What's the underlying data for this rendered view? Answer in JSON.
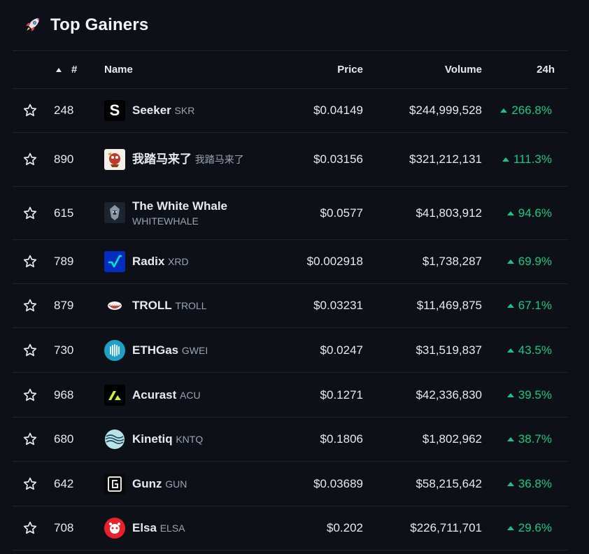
{
  "header": {
    "title": "Top Gainers",
    "icon": "rocket-icon"
  },
  "columns": {
    "rank": "#",
    "name": "Name",
    "price": "Price",
    "volume": "Volume",
    "change": "24h"
  },
  "colors": {
    "up": "#16c784",
    "bg": "#0d1117",
    "border": "#21262d"
  },
  "rows": [
    {
      "rank": "248",
      "name": "Seeker",
      "symbol": "SKR",
      "price": "$0.04149",
      "volume": "$244,999,528",
      "change": "266.8%",
      "logo": "seeker-logo"
    },
    {
      "rank": "890",
      "name": "我踏马来了",
      "symbol": "我踏马来了",
      "price": "$0.03156",
      "volume": "$321,212,131",
      "change": "111.3%",
      "logo": "wtmll-logo"
    },
    {
      "rank": "615",
      "name": "The White Whale",
      "symbol": "WHITEWHALE",
      "price": "$0.0577",
      "volume": "$41,803,912",
      "change": "94.6%",
      "logo": "whitewhale-logo"
    },
    {
      "rank": "789",
      "name": "Radix",
      "symbol": "XRD",
      "price": "$0.002918",
      "volume": "$1,738,287",
      "change": "69.9%",
      "logo": "radix-logo"
    },
    {
      "rank": "879",
      "name": "TROLL",
      "symbol": "TROLL",
      "price": "$0.03231",
      "volume": "$11,469,875",
      "change": "67.1%",
      "logo": "troll-logo"
    },
    {
      "rank": "730",
      "name": "ETHGas",
      "symbol": "GWEI",
      "price": "$0.0247",
      "volume": "$31,519,837",
      "change": "43.5%",
      "logo": "ethgas-logo"
    },
    {
      "rank": "968",
      "name": "Acurast",
      "symbol": "ACU",
      "price": "$0.1271",
      "volume": "$42,336,830",
      "change": "39.5%",
      "logo": "acurast-logo"
    },
    {
      "rank": "680",
      "name": "Kinetiq",
      "symbol": "KNTQ",
      "price": "$0.1806",
      "volume": "$1,802,962",
      "change": "38.7%",
      "logo": "kinetiq-logo"
    },
    {
      "rank": "642",
      "name": "Gunz",
      "symbol": "GUN",
      "price": "$0.03689",
      "volume": "$58,215,642",
      "change": "36.8%",
      "logo": "gunz-logo"
    },
    {
      "rank": "708",
      "name": "Elsa",
      "symbol": "ELSA",
      "price": "$0.202",
      "volume": "$226,711,701",
      "change": "29.6%",
      "logo": "elsa-logo"
    }
  ]
}
